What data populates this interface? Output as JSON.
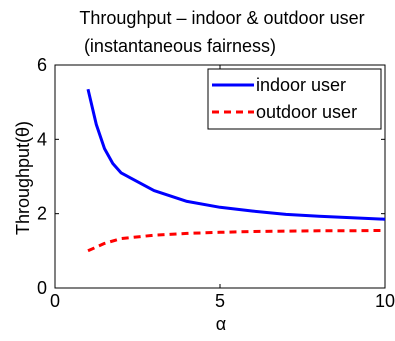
{
  "chart_data": {
    "type": "line",
    "title": [
      "Throughput – indoor & outdoor user",
      "(instantaneous fairness)"
    ],
    "xlabel": "α",
    "ylabel": "Throughput(θ)",
    "xlim": [
      0,
      10
    ],
    "ylim": [
      0,
      6
    ],
    "xticks": [
      0,
      5,
      10
    ],
    "yticks": [
      0,
      2,
      4,
      6
    ],
    "grid": false,
    "legend_position": "top-right",
    "series": [
      {
        "name": "indoor user",
        "color": "#0000ff",
        "line_style": "solid",
        "x": [
          1,
          1.25,
          1.5,
          1.75,
          2,
          3,
          4,
          5,
          6,
          7,
          8,
          9,
          10
        ],
        "y": [
          5.35,
          4.4,
          3.75,
          3.35,
          3.1,
          2.62,
          2.33,
          2.17,
          2.07,
          1.98,
          1.93,
          1.89,
          1.85
        ]
      },
      {
        "name": "outdoor user",
        "color": "#ff0000",
        "line_style": "dashed",
        "x": [
          1,
          1.5,
          2,
          3,
          4,
          5,
          6,
          7,
          8,
          9,
          10
        ],
        "y": [
          1.0,
          1.2,
          1.33,
          1.42,
          1.47,
          1.5,
          1.52,
          1.53,
          1.54,
          1.54,
          1.55
        ]
      }
    ]
  }
}
